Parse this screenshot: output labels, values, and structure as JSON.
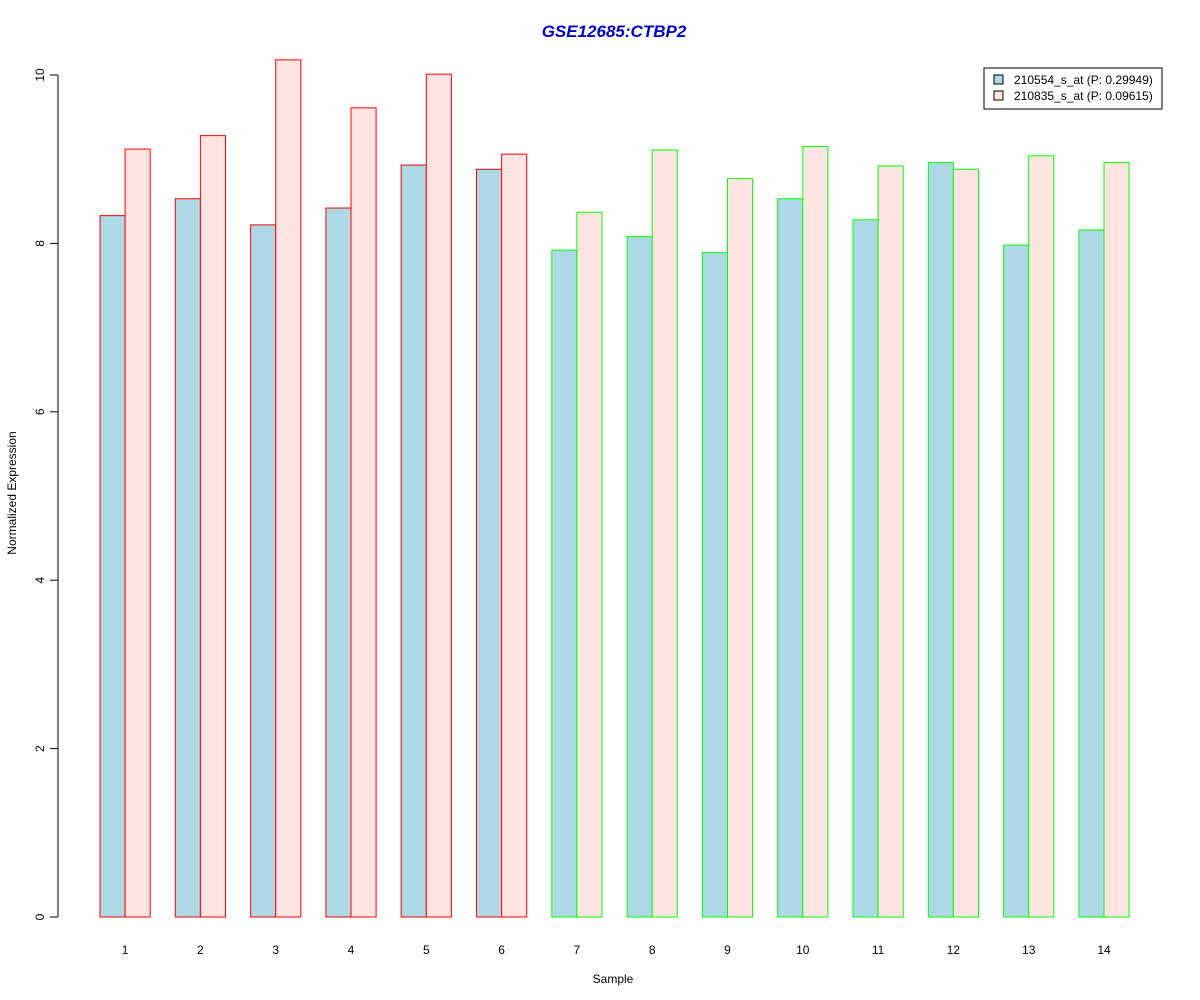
{
  "chart_data": {
    "type": "bar",
    "title": "GSE12685:CTBP2",
    "xlabel": "Sample",
    "ylabel": "Normalized Expression",
    "ylim": [
      0,
      10
    ],
    "yticks": [
      "0",
      "2",
      "4",
      "6",
      "8",
      "10"
    ],
    "categories": [
      "1",
      "2",
      "3",
      "4",
      "5",
      "6",
      "7",
      "8",
      "9",
      "10",
      "11",
      "12",
      "13",
      "14"
    ],
    "series": [
      {
        "name": "210554_s_at (P: 0.29949)",
        "fill": "#add8e6",
        "values": [
          8.33,
          8.53,
          8.22,
          8.42,
          8.93,
          8.88,
          7.92,
          8.08,
          7.89,
          8.53,
          8.28,
          8.96,
          7.98,
          8.16
        ]
      },
      {
        "name": "210835_s_at (P: 0.09615)",
        "fill": "#ffe4e1",
        "values": [
          9.12,
          9.28,
          10.18,
          9.61,
          10.01,
          9.06,
          8.37,
          9.11,
          8.77,
          9.15,
          8.92,
          8.88,
          9.04,
          8.96
        ]
      }
    ],
    "group_border_colors": [
      "#ff0000",
      "#ff0000",
      "#ff0000",
      "#ff0000",
      "#ff0000",
      "#ff0000",
      "#00ff00",
      "#00ff00",
      "#00ff00",
      "#00ff00",
      "#00ff00",
      "#00ff00",
      "#00ff00",
      "#00ff00"
    ],
    "title_color": "#0000cc",
    "legend_position": "top-right",
    "grid": false
  }
}
